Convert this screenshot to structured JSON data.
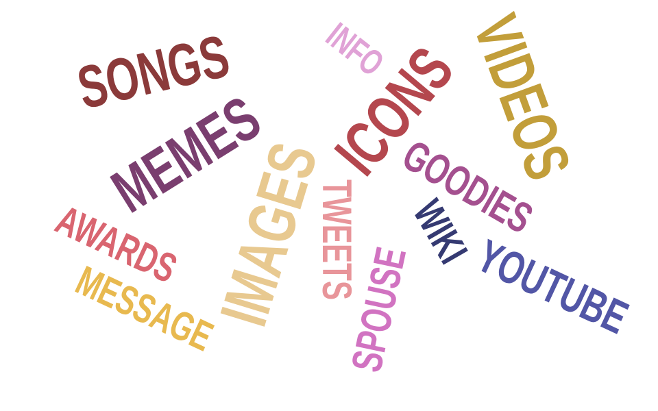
{
  "word_cloud": {
    "words": [
      {
        "text": "SONGS",
        "color": "#8b3a3a"
      },
      {
        "text": "MEMES",
        "color": "#7a3e6f"
      },
      {
        "text": "INFO",
        "color": "#e0a2d6"
      },
      {
        "text": "ICONS",
        "color": "#b4474e"
      },
      {
        "text": "VIDEOS",
        "color": "#c29e3a"
      },
      {
        "text": "IMAGES",
        "color": "#e8c990"
      },
      {
        "text": "TWEETS",
        "color": "#e8959a"
      },
      {
        "text": "GOODIES",
        "color": "#a4508f"
      },
      {
        "text": "WIKI",
        "color": "#353a72"
      },
      {
        "text": "YOUTUBE",
        "color": "#5256a6"
      },
      {
        "text": "SPOUSE",
        "color": "#d173c1"
      },
      {
        "text": "AWARDS",
        "color": "#d96570"
      },
      {
        "text": "MESSAGE",
        "color": "#e8b94f"
      }
    ]
  }
}
